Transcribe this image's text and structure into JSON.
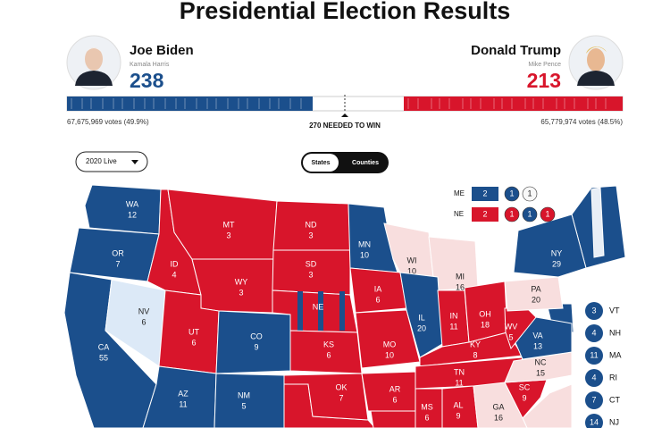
{
  "header": {
    "title": "Presidential Election Results"
  },
  "candidates": [
    {
      "name": "Joe Biden",
      "running_mate": "Kamala Harris",
      "electoral_votes": 238,
      "popular_vote": "67,675,969 votes (49.9%)",
      "color": "#1b4f8c"
    },
    {
      "name": "Donald Trump",
      "running_mate": "Mike Pence",
      "electoral_votes": 213,
      "popular_vote": "65,779,974 votes (48.5%)",
      "color": "#d8152b"
    }
  ],
  "needed": "270 NEEDED TO WIN",
  "controls": {
    "dropdown": "2020 Live",
    "toggle": [
      "States",
      "Counties"
    ]
  },
  "map": {
    "states": [
      {
        "abbr": "WA",
        "votes": 12,
        "color": "#1b4f8c"
      },
      {
        "abbr": "OR",
        "votes": 7,
        "color": "#1b4f8c"
      },
      {
        "abbr": "CA",
        "votes": 55,
        "color": "#1b4f8c"
      },
      {
        "abbr": "NV",
        "votes": 6,
        "color": "#dce9f7"
      },
      {
        "abbr": "ID",
        "votes": 4,
        "color": "#d8152b"
      },
      {
        "abbr": "MT",
        "votes": 3,
        "color": "#d8152b"
      },
      {
        "abbr": "WY",
        "votes": 3,
        "color": "#d8152b"
      },
      {
        "abbr": "UT",
        "votes": 6,
        "color": "#d8152b"
      },
      {
        "abbr": "CO",
        "votes": 9,
        "color": "#1b4f8c"
      },
      {
        "abbr": "AZ",
        "votes": 11,
        "color": "#1b4f8c"
      },
      {
        "abbr": "NM",
        "votes": 5,
        "color": "#1b4f8c"
      },
      {
        "abbr": "ND",
        "votes": 3,
        "color": "#d8152b"
      },
      {
        "abbr": "SD",
        "votes": 3,
        "color": "#d8152b"
      },
      {
        "abbr": "NE",
        "color": "#d8152b"
      },
      {
        "abbr": "KS",
        "votes": 6,
        "color": "#d8152b"
      },
      {
        "abbr": "OK",
        "votes": 7,
        "color": "#d8152b"
      },
      {
        "abbr": "MN",
        "votes": 10,
        "color": "#1b4f8c"
      },
      {
        "abbr": "IA",
        "votes": 6,
        "color": "#d8152b"
      },
      {
        "abbr": "MO",
        "votes": 10,
        "color": "#d8152b"
      },
      {
        "abbr": "AR",
        "votes": 6,
        "color": "#d8152b"
      },
      {
        "abbr": "WI",
        "votes": 10,
        "color": "#f8dede"
      },
      {
        "abbr": "MI",
        "votes": 16,
        "color": "#f8dede"
      },
      {
        "abbr": "IL",
        "votes": 20,
        "color": "#1b4f8c"
      },
      {
        "abbr": "IN",
        "votes": 11,
        "color": "#d8152b"
      },
      {
        "abbr": "OH",
        "votes": 18,
        "color": "#d8152b"
      },
      {
        "abbr": "KY",
        "votes": 8,
        "color": "#d8152b"
      },
      {
        "abbr": "TN",
        "votes": 11,
        "color": "#d8152b"
      },
      {
        "abbr": "MS",
        "votes": 6,
        "color": "#d8152b"
      },
      {
        "abbr": "AL",
        "votes": 9,
        "color": "#d8152b"
      },
      {
        "abbr": "GA",
        "votes": 16,
        "color": "#f8dede"
      },
      {
        "abbr": "SC",
        "votes": 9,
        "color": "#d8152b"
      },
      {
        "abbr": "NC",
        "votes": 15,
        "color": "#f8dede"
      },
      {
        "abbr": "VA",
        "votes": 13,
        "color": "#1b4f8c"
      },
      {
        "abbr": "WV",
        "votes": 5,
        "color": "#d8152b"
      },
      {
        "abbr": "PA",
        "votes": 20,
        "color": "#f8dede"
      },
      {
        "abbr": "NY",
        "votes": 29,
        "color": "#1b4f8c"
      }
    ],
    "split": [
      {
        "abbr": "ME",
        "districts": [
          {
            "votes": 2,
            "color": "#1b4f8c"
          },
          {
            "votes": 1,
            "color": "#1b4f8c"
          },
          {
            "votes": 1,
            "color": "#f8f8f8"
          }
        ]
      },
      {
        "abbr": "NE",
        "districts": [
          {
            "votes": 2,
            "color": "#d8152b"
          },
          {
            "votes": 1,
            "color": "#d8152b"
          },
          {
            "votes": 1,
            "color": "#1b4f8c"
          },
          {
            "votes": 1,
            "color": "#d8152b"
          }
        ]
      }
    ],
    "small_states": [
      {
        "abbr": "VT",
        "votes": 3,
        "color": "#1b4f8c"
      },
      {
        "abbr": "NH",
        "votes": 4,
        "color": "#1b4f8c"
      },
      {
        "abbr": "MA",
        "votes": 11,
        "color": "#1b4f8c"
      },
      {
        "abbr": "RI",
        "votes": 4,
        "color": "#1b4f8c"
      },
      {
        "abbr": "CT",
        "votes": 7,
        "color": "#1b4f8c"
      },
      {
        "abbr": "NJ",
        "votes": 14,
        "color": "#1b4f8c"
      }
    ]
  }
}
